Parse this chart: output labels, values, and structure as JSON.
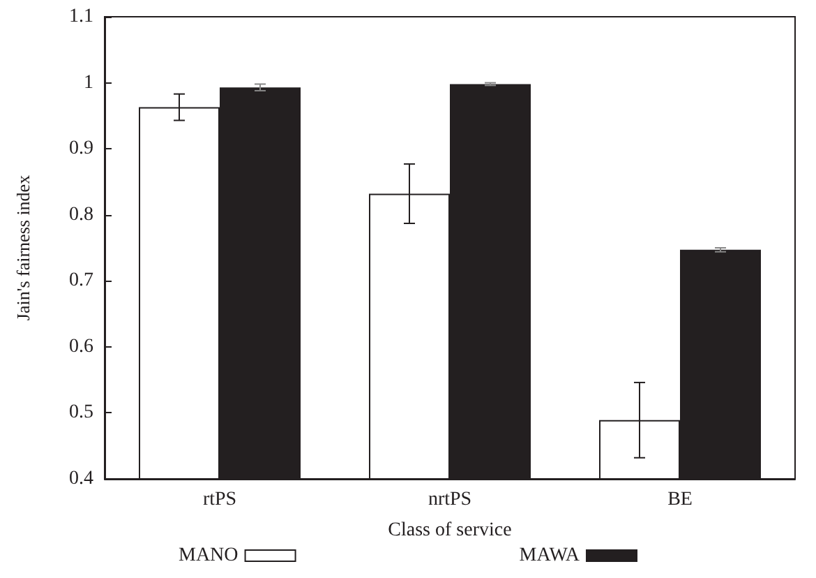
{
  "chart_data": {
    "type": "bar",
    "xlabel": "Class of service",
    "ylabel": "Jain's fairness index",
    "categories": [
      "rtPS",
      "nrtPS",
      "BE"
    ],
    "series": [
      {
        "name": "MANO",
        "color": "#ffffff",
        "values": [
          0.963,
          0.832,
          0.489
        ],
        "errors": [
          0.02,
          0.045,
          0.057
        ]
      },
      {
        "name": "MAWA",
        "color": "#231f20",
        "values": [
          0.993,
          0.998,
          0.747
        ],
        "errors": [
          0.005,
          0.002,
          0.003
        ]
      }
    ],
    "ylim": [
      0.4,
      1.1
    ],
    "yticks": [
      0.4,
      0.5,
      0.6,
      0.7,
      0.8,
      0.9,
      1,
      1.1
    ],
    "grid": false,
    "legend": "bottom"
  }
}
